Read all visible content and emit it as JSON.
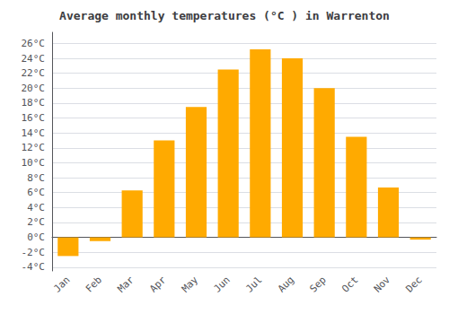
{
  "chart_data": {
    "type": "bar",
    "title": "Average monthly temperatures (°C ) in Warrenton",
    "categories": [
      "Jan",
      "Feb",
      "Mar",
      "Apr",
      "May",
      "Jun",
      "Jul",
      "Aug",
      "Sep",
      "Oct",
      "Nov",
      "Dec"
    ],
    "values": [
      -2.5,
      -0.5,
      6.3,
      13.0,
      17.5,
      22.5,
      25.2,
      24.0,
      20.0,
      13.5,
      6.7,
      -0.3
    ],
    "color": "#FFAA00",
    "ylim": [
      -4.5,
      27.5
    ],
    "yticks": [
      {
        "value": -4,
        "label": "-4°C"
      },
      {
        "value": -2,
        "label": "-2°C"
      },
      {
        "value": 0,
        "label": "0°C"
      },
      {
        "value": 2,
        "label": "2°C"
      },
      {
        "value": 4,
        "label": "4°C"
      },
      {
        "value": 6,
        "label": "6°C"
      },
      {
        "value": 8,
        "label": "8°C"
      },
      {
        "value": 10,
        "label": "10°C"
      },
      {
        "value": 12,
        "label": "12°C"
      },
      {
        "value": 14,
        "label": "14°C"
      },
      {
        "value": 16,
        "label": "16°C"
      },
      {
        "value": 18,
        "label": "18°C"
      },
      {
        "value": 20,
        "label": "20°C"
      },
      {
        "value": 22,
        "label": "22°C"
      },
      {
        "value": 24,
        "label": "24°C"
      },
      {
        "value": 26,
        "label": "26°C"
      }
    ],
    "grid": true
  }
}
